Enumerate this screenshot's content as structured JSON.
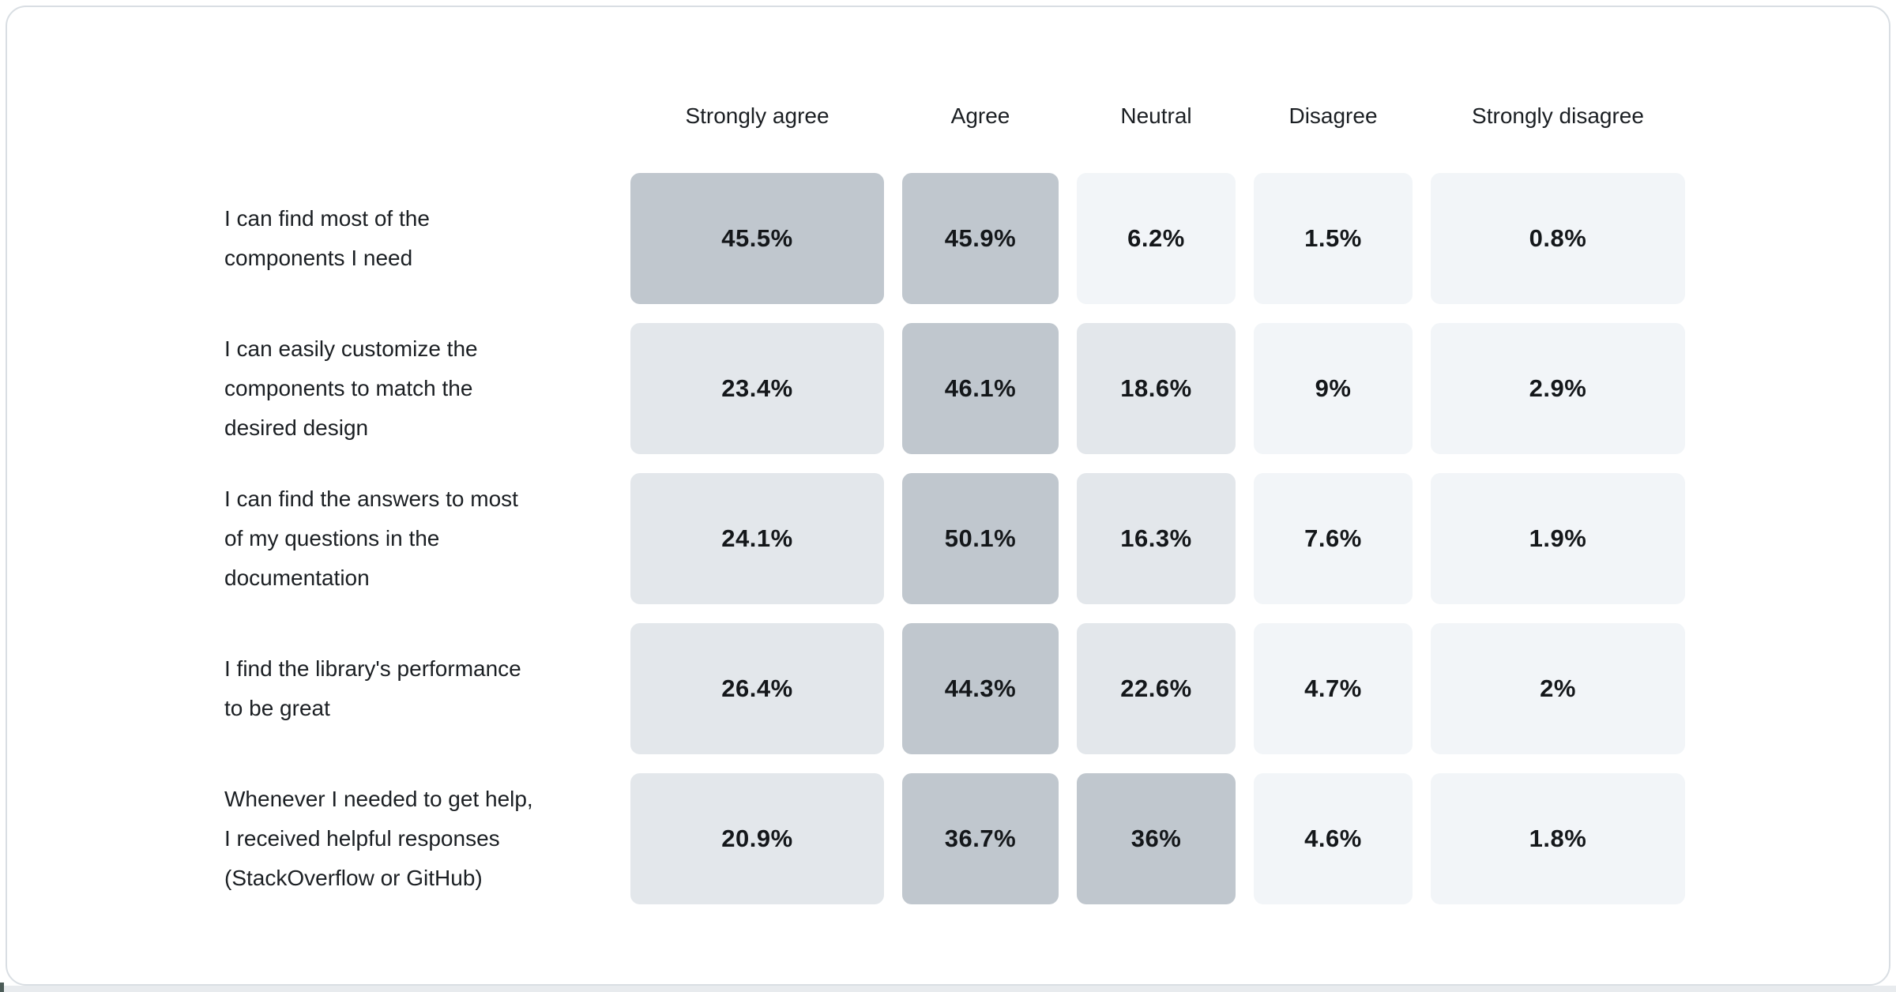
{
  "chart_data": {
    "type": "heatmap",
    "title": "",
    "columns": [
      "Strongly agree",
      "Agree",
      "Neutral",
      "Disagree",
      "Strongly disagree"
    ],
    "rows": [
      {
        "label": "I can find most of the\ncomponents I need",
        "values": [
          45.5,
          45.9,
          6.2,
          1.5,
          0.8
        ]
      },
      {
        "label": "I can easily customize the\ncomponents to match the\ndesired design",
        "values": [
          23.4,
          46.1,
          18.6,
          9,
          2.9
        ]
      },
      {
        "label": "I can find the answers to most\nof my questions in the\ndocumentation",
        "values": [
          24.1,
          50.1,
          16.3,
          7.6,
          1.9
        ]
      },
      {
        "label": "I find the library's performance\nto be great",
        "values": [
          26.4,
          44.3,
          22.6,
          4.7,
          2
        ]
      },
      {
        "label": "Whenever I needed to get help,\nI received helpful responses\n(StackOverflow or GitHub)",
        "values": [
          20.9,
          36.7,
          36,
          4.6,
          1.8
        ]
      }
    ],
    "value_unit": "%",
    "palette": {
      "high": "#c0c7ce",
      "mid": "#e3e7eb",
      "low": "#f2f5f8"
    },
    "text_color": "#1b1f23",
    "value_text_color": "#14171a",
    "card_border_color": "#d9dee3",
    "legend_position": "none",
    "grid": false
  }
}
